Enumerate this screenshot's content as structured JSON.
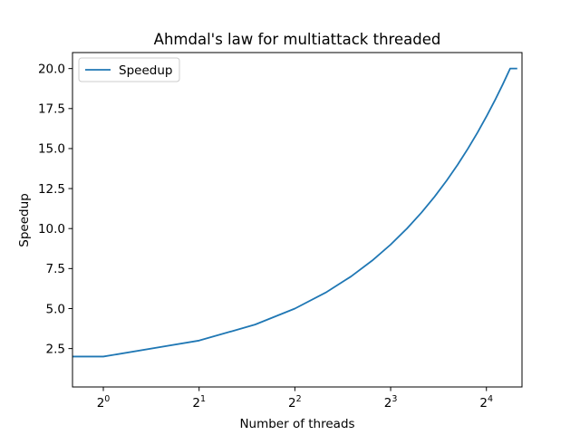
{
  "chart_data": {
    "type": "line",
    "title": "Ahmdal's law for multiattack threaded",
    "xlabel": "Number of threads",
    "ylabel": "Speedup",
    "x_scale": "log2",
    "xlim": [
      0.8,
      20.7
    ],
    "ylim": [
      0.1,
      21.0
    ],
    "x_ticks": [
      {
        "value": 1,
        "base": "2",
        "exp": "0"
      },
      {
        "value": 2,
        "base": "2",
        "exp": "1"
      },
      {
        "value": 4,
        "base": "2",
        "exp": "2"
      },
      {
        "value": 8,
        "base": "2",
        "exp": "3"
      },
      {
        "value": 16,
        "base": "2",
        "exp": "4"
      }
    ],
    "y_ticks": [
      {
        "value": 2.5,
        "label": "2.5"
      },
      {
        "value": 5.0,
        "label": "5.0"
      },
      {
        "value": 7.5,
        "label": "7.5"
      },
      {
        "value": 10.0,
        "label": "10.0"
      },
      {
        "value": 12.5,
        "label": "12.5"
      },
      {
        "value": 15.0,
        "label": "15.0"
      },
      {
        "value": 17.5,
        "label": "17.5"
      },
      {
        "value": 20.0,
        "label": "20.0"
      }
    ],
    "grid": false,
    "legend_position": "top-left",
    "series": [
      {
        "name": "Speedup",
        "color": "#1f77b4",
        "x": [
          0,
          1,
          2,
          3,
          4,
          5,
          6,
          7,
          8,
          9,
          10,
          11,
          12,
          13,
          14,
          15,
          16,
          17,
          18,
          19,
          20
        ],
        "y": [
          2,
          2,
          3,
          4,
          5,
          6,
          7,
          8,
          9,
          10,
          11,
          12,
          13,
          14,
          15,
          16,
          17,
          18,
          19,
          20,
          20
        ]
      }
    ]
  }
}
